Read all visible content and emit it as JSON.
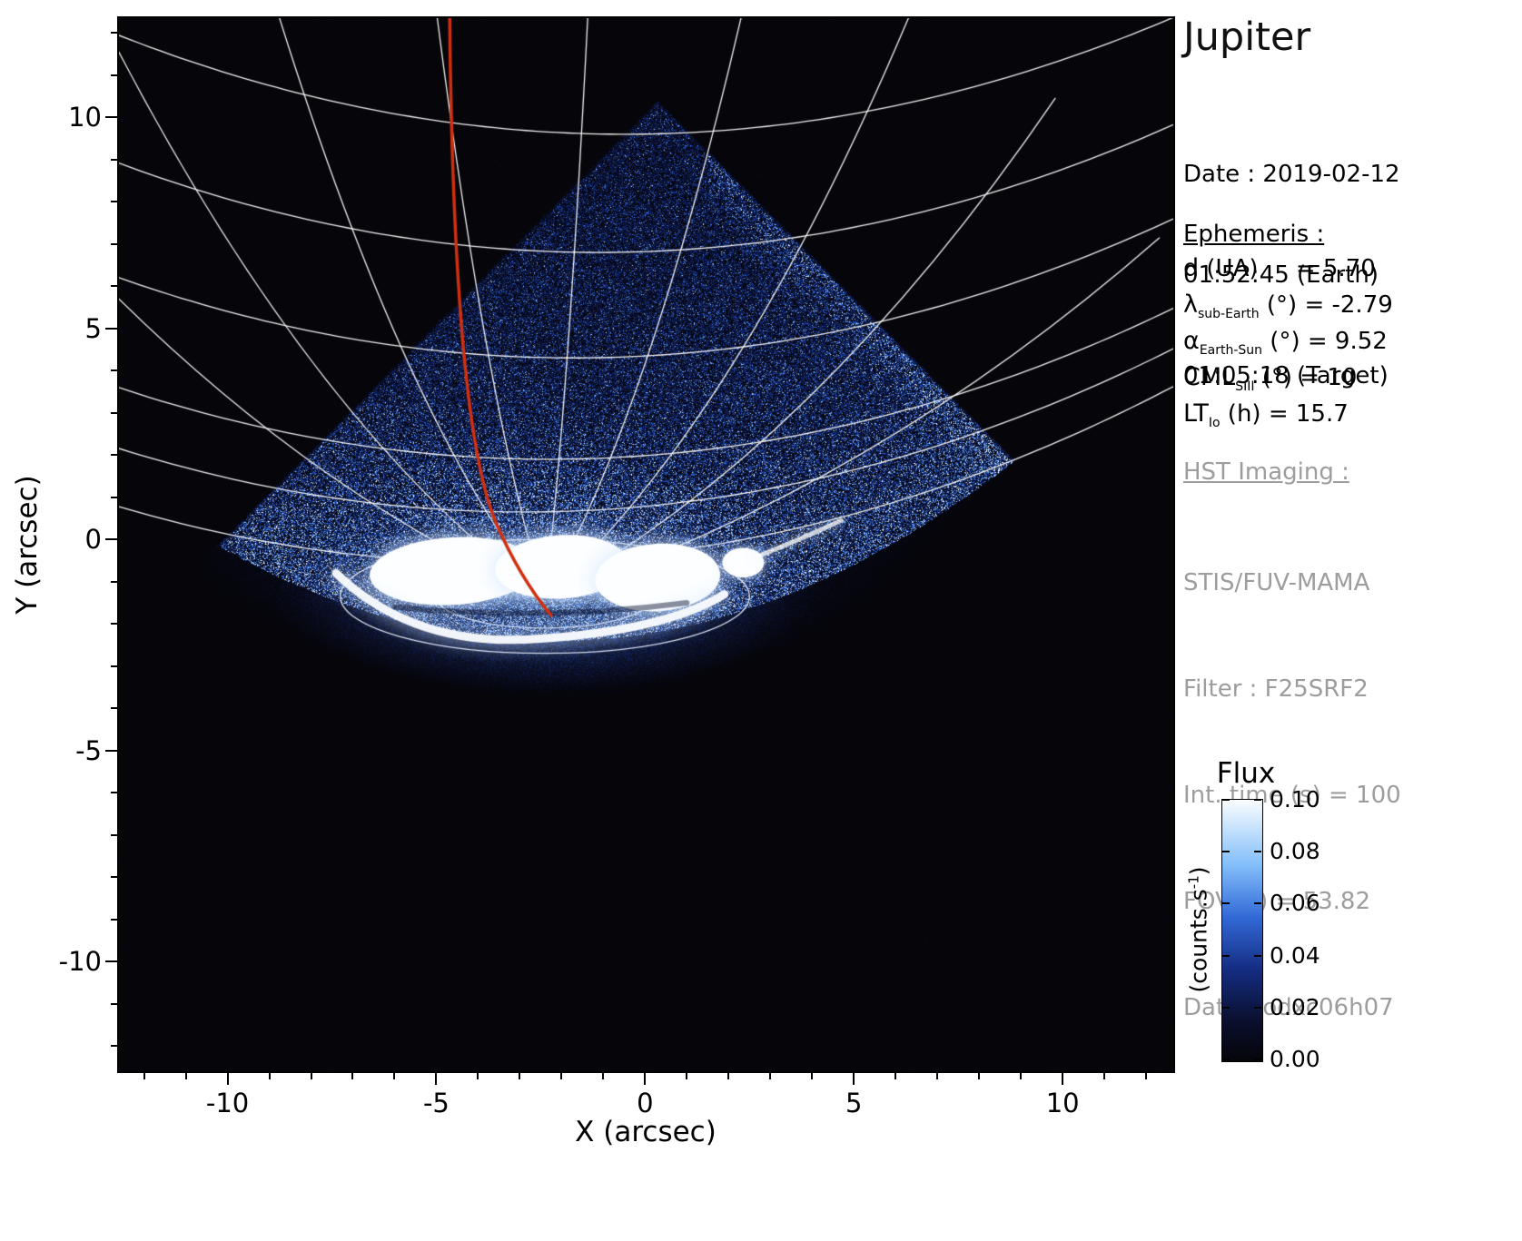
{
  "title": "Jupiter",
  "observation": {
    "date_line": "Date : 2019-02-12",
    "earth_time": "01:52:45 (Earth)",
    "target_time": "01:05:18 (Target)"
  },
  "ephemeris": {
    "heading": "Ephemeris :",
    "rows": [
      {
        "symbol": "d",
        "sub": "",
        "rest": " (UA)     = 5.70"
      },
      {
        "symbol": "λ",
        "sub": "sub-Earth",
        "rest": " (°) = -2.79"
      },
      {
        "symbol": "α",
        "sub": "Earth-Sun",
        "rest": " (°) = 9.52"
      },
      {
        "symbol": "CML",
        "sub": "SIII",
        "rest": " (°) = 10"
      },
      {
        "symbol": "LT",
        "sub": "Io",
        "rest": " (h) = 15.7"
      }
    ]
  },
  "hst": {
    "heading": "HST Imaging :",
    "rows": [
      "STIS/FUV-MAMA",
      "Filter : F25SRF2",
      "Int. time (s) = 100",
      "FOV (\") = 53.82",
      "Data : odxc06h07"
    ]
  },
  "colorbar": {
    "title": "Flux",
    "tick_labels": [
      "0.10",
      "0.08",
      "0.06",
      "0.04",
      "0.02",
      "0.00"
    ],
    "unit": {
      "pre": "(counts.s",
      "sup": "-1",
      "post": ")"
    }
  },
  "axes": {
    "xlabel": "X (arcsec)",
    "ylabel": "Y (arcsec)",
    "xtick_labels": [
      "-10",
      "-5",
      "0",
      "5",
      "10"
    ],
    "ytick_labels": [
      "10",
      "5",
      "0",
      "-5",
      "-10"
    ]
  },
  "chart_data": {
    "type": "heatmap",
    "title": "Jupiter",
    "description": "HST STIS/FUV-MAMA far-ultraviolet image of Jupiter showing the northern auroral oval, detector field-of-view noise diamond, planetary graticule and Io footprint meridian line",
    "xlabel": "X (arcsec)",
    "ylabel": "Y (arcsec)",
    "x_range": [
      -12.6,
      12.65
    ],
    "y_range": [
      -12.6,
      12.35
    ],
    "x_ticks": [
      -10,
      -5,
      0,
      5,
      10
    ],
    "y_ticks": [
      10,
      5,
      0,
      -5,
      -10
    ],
    "flux_range": [
      0.0,
      0.1
    ],
    "flux_ticks": [
      0.1,
      0.08,
      0.06,
      0.04,
      0.02,
      0.0
    ],
    "content": {
      "detector_fov_apex": [
        0.3,
        10.45
      ],
      "limb": {
        "y0": -2.4,
        "curvature": 0.035,
        "x0": -2.2
      },
      "pole": [
        -2.4,
        -1.35
      ],
      "lat_arcs_vertex_y": [
        -0.55,
        0.65,
        1.9,
        4.3,
        6.8,
        9.6
      ],
      "pole_ovals": [
        [
          2.6,
          0.75
        ],
        [
          4.9,
          1.35
        ]
      ],
      "meridian_azimuths_deg": [
        -52,
        -38,
        -24,
        -10,
        4,
        18,
        32,
        46,
        60
      ],
      "aurora_blobs": [
        [
          -4.6,
          -0.75,
          2.0,
          0.8
        ],
        [
          -2.0,
          -0.65,
          1.6,
          0.75
        ],
        [
          0.3,
          -0.9,
          1.5,
          0.8
        ]
      ],
      "aurora_lower_arc": [
        [
          -7.4,
          -0.8
        ],
        [
          -5.5,
          -2.6
        ],
        [
          -2.5,
          -2.35
        ],
        [
          0.5,
          -2.15
        ],
        [
          1.9,
          -1.3
        ]
      ],
      "io_footprint_spot": [
        2.35,
        -0.55
      ],
      "io_tail": [
        [
          2.7,
          -0.4
        ],
        [
          3.6,
          -0.05
        ],
        [
          4.7,
          0.45
        ]
      ],
      "io_meridian_path": [
        [
          -4.68,
          12.4
        ],
        [
          -4.62,
          6.5
        ],
        [
          -4.3,
          2.0
        ],
        [
          -3.55,
          0.35
        ],
        [
          -3.0,
          -0.9
        ],
        [
          -2.25,
          -1.8
        ]
      ],
      "io_meridian_color": "#d02f10",
      "graticule_color": "rgba(255,255,255,0.95)",
      "noise_colormap": [
        [
          0,
          [
            5,
            5,
            10
          ]
        ],
        [
          0.15,
          [
            10,
            15,
            45
          ]
        ],
        [
          0.35,
          [
            20,
            45,
            130
          ]
        ],
        [
          0.55,
          [
            50,
            105,
            215
          ]
        ],
        [
          0.75,
          [
            130,
            190,
            250
          ]
        ],
        [
          1,
          [
            250,
            253,
            255
          ]
        ]
      ]
    }
  }
}
